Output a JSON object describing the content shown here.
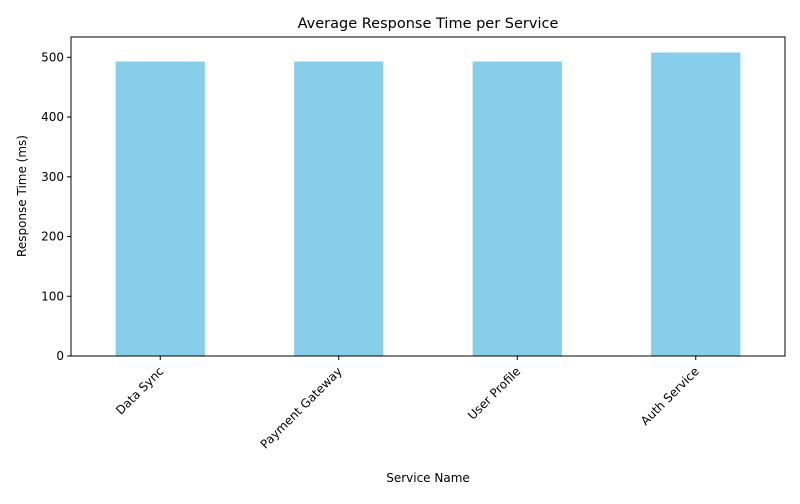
{
  "chart_data": {
    "type": "bar",
    "title": "Average Response Time per Service",
    "xlabel": "Service Name",
    "ylabel": "Response Time (ms)",
    "categories": [
      "Data Sync",
      "Payment Gateway",
      "User Profile",
      "Auth Service"
    ],
    "values": [
      493,
      493,
      493,
      508
    ],
    "ylim": [
      0,
      534
    ],
    "yticks": [
      0,
      100,
      200,
      300,
      400,
      500
    ],
    "grid": false,
    "bar_color": "#87ceeb"
  }
}
